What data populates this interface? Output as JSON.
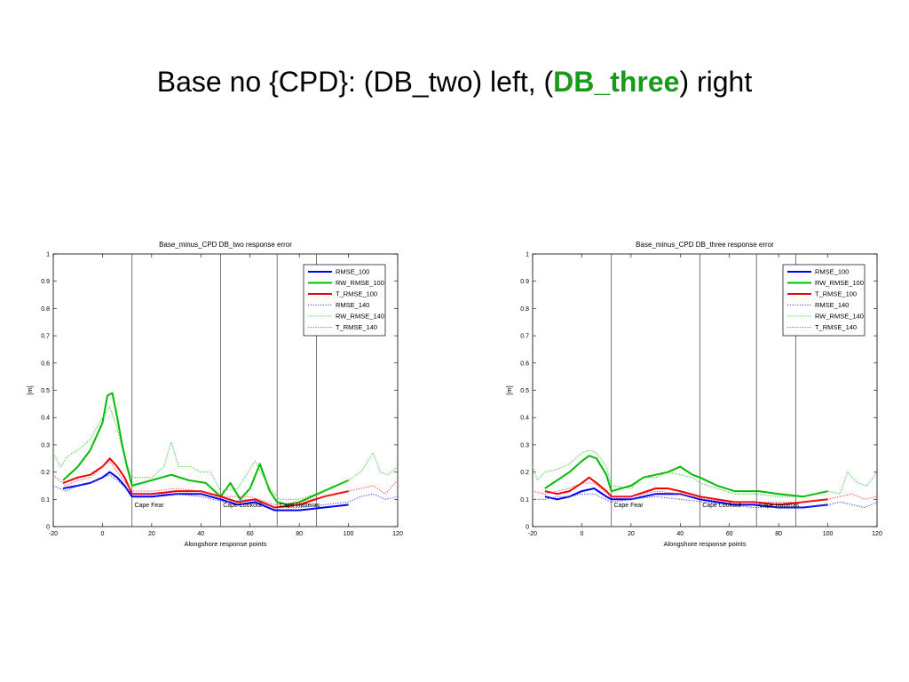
{
  "slide": {
    "title_part1": "Base no {CPD}: (DB_two) left, (",
    "title_highlight": "DB_three",
    "title_part2": ") right",
    "highlight_color": "#1a9a1a"
  },
  "chart_data": [
    {
      "type": "line",
      "title": "Base_minus_CPD DB_two response error",
      "xlabel": "Alongshore response points",
      "ylabel": "[m]",
      "xlim": [
        -20,
        120
      ],
      "ylim": [
        0,
        1
      ],
      "xticks": [
        -20,
        0,
        20,
        40,
        60,
        80,
        100,
        120
      ],
      "yticks": [
        0,
        0.1,
        0.2,
        0.3,
        0.4,
        0.5,
        0.6,
        0.7,
        0.8,
        0.9,
        1
      ],
      "grid": false,
      "legend_position": "top-right",
      "vlines": [
        12,
        48,
        71,
        87
      ],
      "annotations": [
        {
          "text": "Cape Fear",
          "x": 13,
          "y": 0.085
        },
        {
          "text": "Cape Lookout",
          "x": 49,
          "y": 0.085
        },
        {
          "text": "Cape Hatteras",
          "x": 72,
          "y": 0.085
        }
      ],
      "series": [
        {
          "name": "RMSE_100",
          "color": "#0000ee",
          "style": "solid",
          "x": [
            -16,
            -10,
            -5,
            0,
            3,
            6,
            9,
            12,
            20,
            30,
            40,
            48,
            55,
            62,
            70,
            80,
            90,
            100
          ],
          "y": [
            0.14,
            0.15,
            0.16,
            0.18,
            0.2,
            0.18,
            0.15,
            0.11,
            0.11,
            0.12,
            0.12,
            0.1,
            0.08,
            0.09,
            0.06,
            0.06,
            0.07,
            0.08
          ]
        },
        {
          "name": "RW_RMSE_100",
          "color": "#00bb00",
          "style": "solid",
          "x": [
            -16,
            -10,
            -5,
            0,
            2,
            4,
            6,
            8,
            10,
            12,
            20,
            28,
            35,
            42,
            48,
            52,
            56,
            60,
            64,
            68,
            71,
            75,
            80,
            90,
            100
          ],
          "y": [
            0.17,
            0.22,
            0.28,
            0.38,
            0.48,
            0.49,
            0.4,
            0.3,
            0.22,
            0.15,
            0.17,
            0.19,
            0.17,
            0.16,
            0.11,
            0.16,
            0.1,
            0.14,
            0.23,
            0.13,
            0.09,
            0.08,
            0.09,
            0.13,
            0.17
          ]
        },
        {
          "name": "T_RMSE_100",
          "color": "#ee0000",
          "style": "solid",
          "x": [
            -16,
            -10,
            -5,
            0,
            3,
            6,
            9,
            12,
            20,
            30,
            40,
            48,
            55,
            62,
            70,
            80,
            90,
            100
          ],
          "y": [
            0.16,
            0.18,
            0.19,
            0.22,
            0.25,
            0.22,
            0.18,
            0.12,
            0.12,
            0.13,
            0.13,
            0.11,
            0.09,
            0.1,
            0.07,
            0.08,
            0.11,
            0.13
          ]
        },
        {
          "name": "RMSE_140",
          "color": "#4444ff",
          "style": "dotted",
          "x": [
            -20,
            -15,
            -10,
            -5,
            0,
            3,
            6,
            12,
            20,
            30,
            40,
            50,
            60,
            70,
            80,
            90,
            100,
            105,
            110,
            115,
            120
          ],
          "y": [
            0.15,
            0.13,
            0.15,
            0.16,
            0.18,
            0.19,
            0.17,
            0.12,
            0.12,
            0.12,
            0.11,
            0.09,
            0.1,
            0.07,
            0.07,
            0.08,
            0.09,
            0.11,
            0.12,
            0.1,
            0.11
          ]
        },
        {
          "name": "RW_RMSE_140",
          "color": "#33cc33",
          "style": "dotted",
          "x": [
            -20,
            -17,
            -14,
            -10,
            -5,
            0,
            3,
            6,
            9,
            12,
            20,
            25,
            28,
            31,
            36,
            40,
            44,
            48,
            55,
            62,
            68,
            72,
            80,
            90,
            100,
            105,
            110,
            113,
            116,
            120
          ],
          "y": [
            0.27,
            0.22,
            0.26,
            0.28,
            0.32,
            0.4,
            0.44,
            0.36,
            0.25,
            0.18,
            0.18,
            0.22,
            0.31,
            0.22,
            0.22,
            0.2,
            0.2,
            0.13,
            0.14,
            0.24,
            0.14,
            0.1,
            0.1,
            0.13,
            0.17,
            0.2,
            0.27,
            0.2,
            0.19,
            0.22
          ]
        },
        {
          "name": "T_RMSE_140",
          "color": "#ff4444",
          "style": "dotted",
          "x": [
            -20,
            -15,
            -10,
            -5,
            0,
            3,
            6,
            12,
            20,
            30,
            40,
            50,
            60,
            70,
            80,
            90,
            100,
            105,
            110,
            115,
            120
          ],
          "y": [
            0.19,
            0.15,
            0.17,
            0.18,
            0.22,
            0.24,
            0.2,
            0.13,
            0.13,
            0.14,
            0.13,
            0.11,
            0.11,
            0.08,
            0.09,
            0.11,
            0.13,
            0.14,
            0.15,
            0.12,
            0.17
          ]
        }
      ]
    },
    {
      "type": "line",
      "title": "Base_minus_CPD DB_three response error",
      "xlabel": "Alongshore response points",
      "ylabel": "[m]",
      "xlim": [
        -20,
        120
      ],
      "ylim": [
        0,
        1
      ],
      "xticks": [
        -20,
        0,
        20,
        40,
        60,
        80,
        100,
        120
      ],
      "yticks": [
        0,
        0.1,
        0.2,
        0.3,
        0.4,
        0.5,
        0.6,
        0.7,
        0.8,
        0.9,
        1
      ],
      "grid": false,
      "legend_position": "top-right",
      "vlines": [
        12,
        48,
        71,
        87
      ],
      "annotations": [
        {
          "text": "Cape Fear",
          "x": 13,
          "y": 0.085
        },
        {
          "text": "Cape Lookout",
          "x": 49,
          "y": 0.085
        },
        {
          "text": "Cape Hatteras",
          "x": 72,
          "y": 0.085
        }
      ],
      "series": [
        {
          "name": "RMSE_100",
          "color": "#0000ee",
          "style": "solid",
          "x": [
            -15,
            -10,
            -5,
            0,
            5,
            10,
            12,
            20,
            30,
            35,
            40,
            48,
            55,
            62,
            70,
            80,
            90,
            100
          ],
          "y": [
            0.11,
            0.1,
            0.11,
            0.13,
            0.14,
            0.11,
            0.1,
            0.1,
            0.12,
            0.12,
            0.12,
            0.1,
            0.09,
            0.08,
            0.08,
            0.07,
            0.07,
            0.08
          ]
        },
        {
          "name": "RW_RMSE_100",
          "color": "#00bb00",
          "style": "solid",
          "x": [
            -15,
            -10,
            -5,
            0,
            3,
            6,
            10,
            12,
            20,
            25,
            30,
            35,
            40,
            45,
            48,
            55,
            62,
            68,
            72,
            80,
            90,
            100
          ],
          "y": [
            0.14,
            0.17,
            0.2,
            0.24,
            0.26,
            0.25,
            0.19,
            0.13,
            0.15,
            0.18,
            0.19,
            0.2,
            0.22,
            0.19,
            0.18,
            0.15,
            0.13,
            0.13,
            0.13,
            0.12,
            0.11,
            0.13
          ]
        },
        {
          "name": "T_RMSE_100",
          "color": "#ee0000",
          "style": "solid",
          "x": [
            -15,
            -10,
            -5,
            0,
            3,
            6,
            10,
            12,
            20,
            30,
            35,
            40,
            48,
            55,
            62,
            70,
            80,
            90,
            100
          ],
          "y": [
            0.13,
            0.12,
            0.13,
            0.16,
            0.18,
            0.16,
            0.13,
            0.11,
            0.11,
            0.14,
            0.14,
            0.13,
            0.11,
            0.1,
            0.09,
            0.09,
            0.08,
            0.09,
            0.1
          ]
        },
        {
          "name": "RMSE_140",
          "color": "#4444ff",
          "style": "dotted",
          "x": [
            -20,
            -15,
            -10,
            -5,
            0,
            5,
            12,
            20,
            30,
            40,
            50,
            60,
            70,
            80,
            90,
            100,
            105,
            110,
            115,
            120
          ],
          "y": [
            0.1,
            0.1,
            0.11,
            0.11,
            0.12,
            0.12,
            0.09,
            0.1,
            0.11,
            0.1,
            0.09,
            0.08,
            0.07,
            0.07,
            0.07,
            0.08,
            0.09,
            0.08,
            0.07,
            0.09
          ]
        },
        {
          "name": "RW_RMSE_140",
          "color": "#33cc33",
          "style": "dotted",
          "x": [
            -20,
            -18,
            -15,
            -10,
            -5,
            0,
            3,
            6,
            10,
            12,
            20,
            25,
            30,
            35,
            40,
            45,
            48,
            55,
            62,
            70,
            80,
            90,
            100,
            105,
            108,
            112,
            116,
            120
          ],
          "y": [
            0.22,
            0.17,
            0.2,
            0.21,
            0.23,
            0.27,
            0.28,
            0.27,
            0.22,
            0.15,
            0.14,
            0.18,
            0.18,
            0.2,
            0.19,
            0.18,
            0.16,
            0.14,
            0.12,
            0.12,
            0.11,
            0.11,
            0.13,
            0.12,
            0.2,
            0.16,
            0.15,
            0.2
          ]
        },
        {
          "name": "T_RMSE_140",
          "color": "#ff4444",
          "style": "dotted",
          "x": [
            -20,
            -15,
            -10,
            -5,
            0,
            5,
            12,
            20,
            30,
            40,
            50,
            60,
            70,
            80,
            90,
            100,
            105,
            110,
            115,
            120
          ],
          "y": [
            0.13,
            0.12,
            0.13,
            0.14,
            0.16,
            0.16,
            0.11,
            0.11,
            0.13,
            0.12,
            0.1,
            0.09,
            0.09,
            0.09,
            0.09,
            0.1,
            0.11,
            0.12,
            0.1,
            0.11
          ]
        }
      ]
    }
  ]
}
